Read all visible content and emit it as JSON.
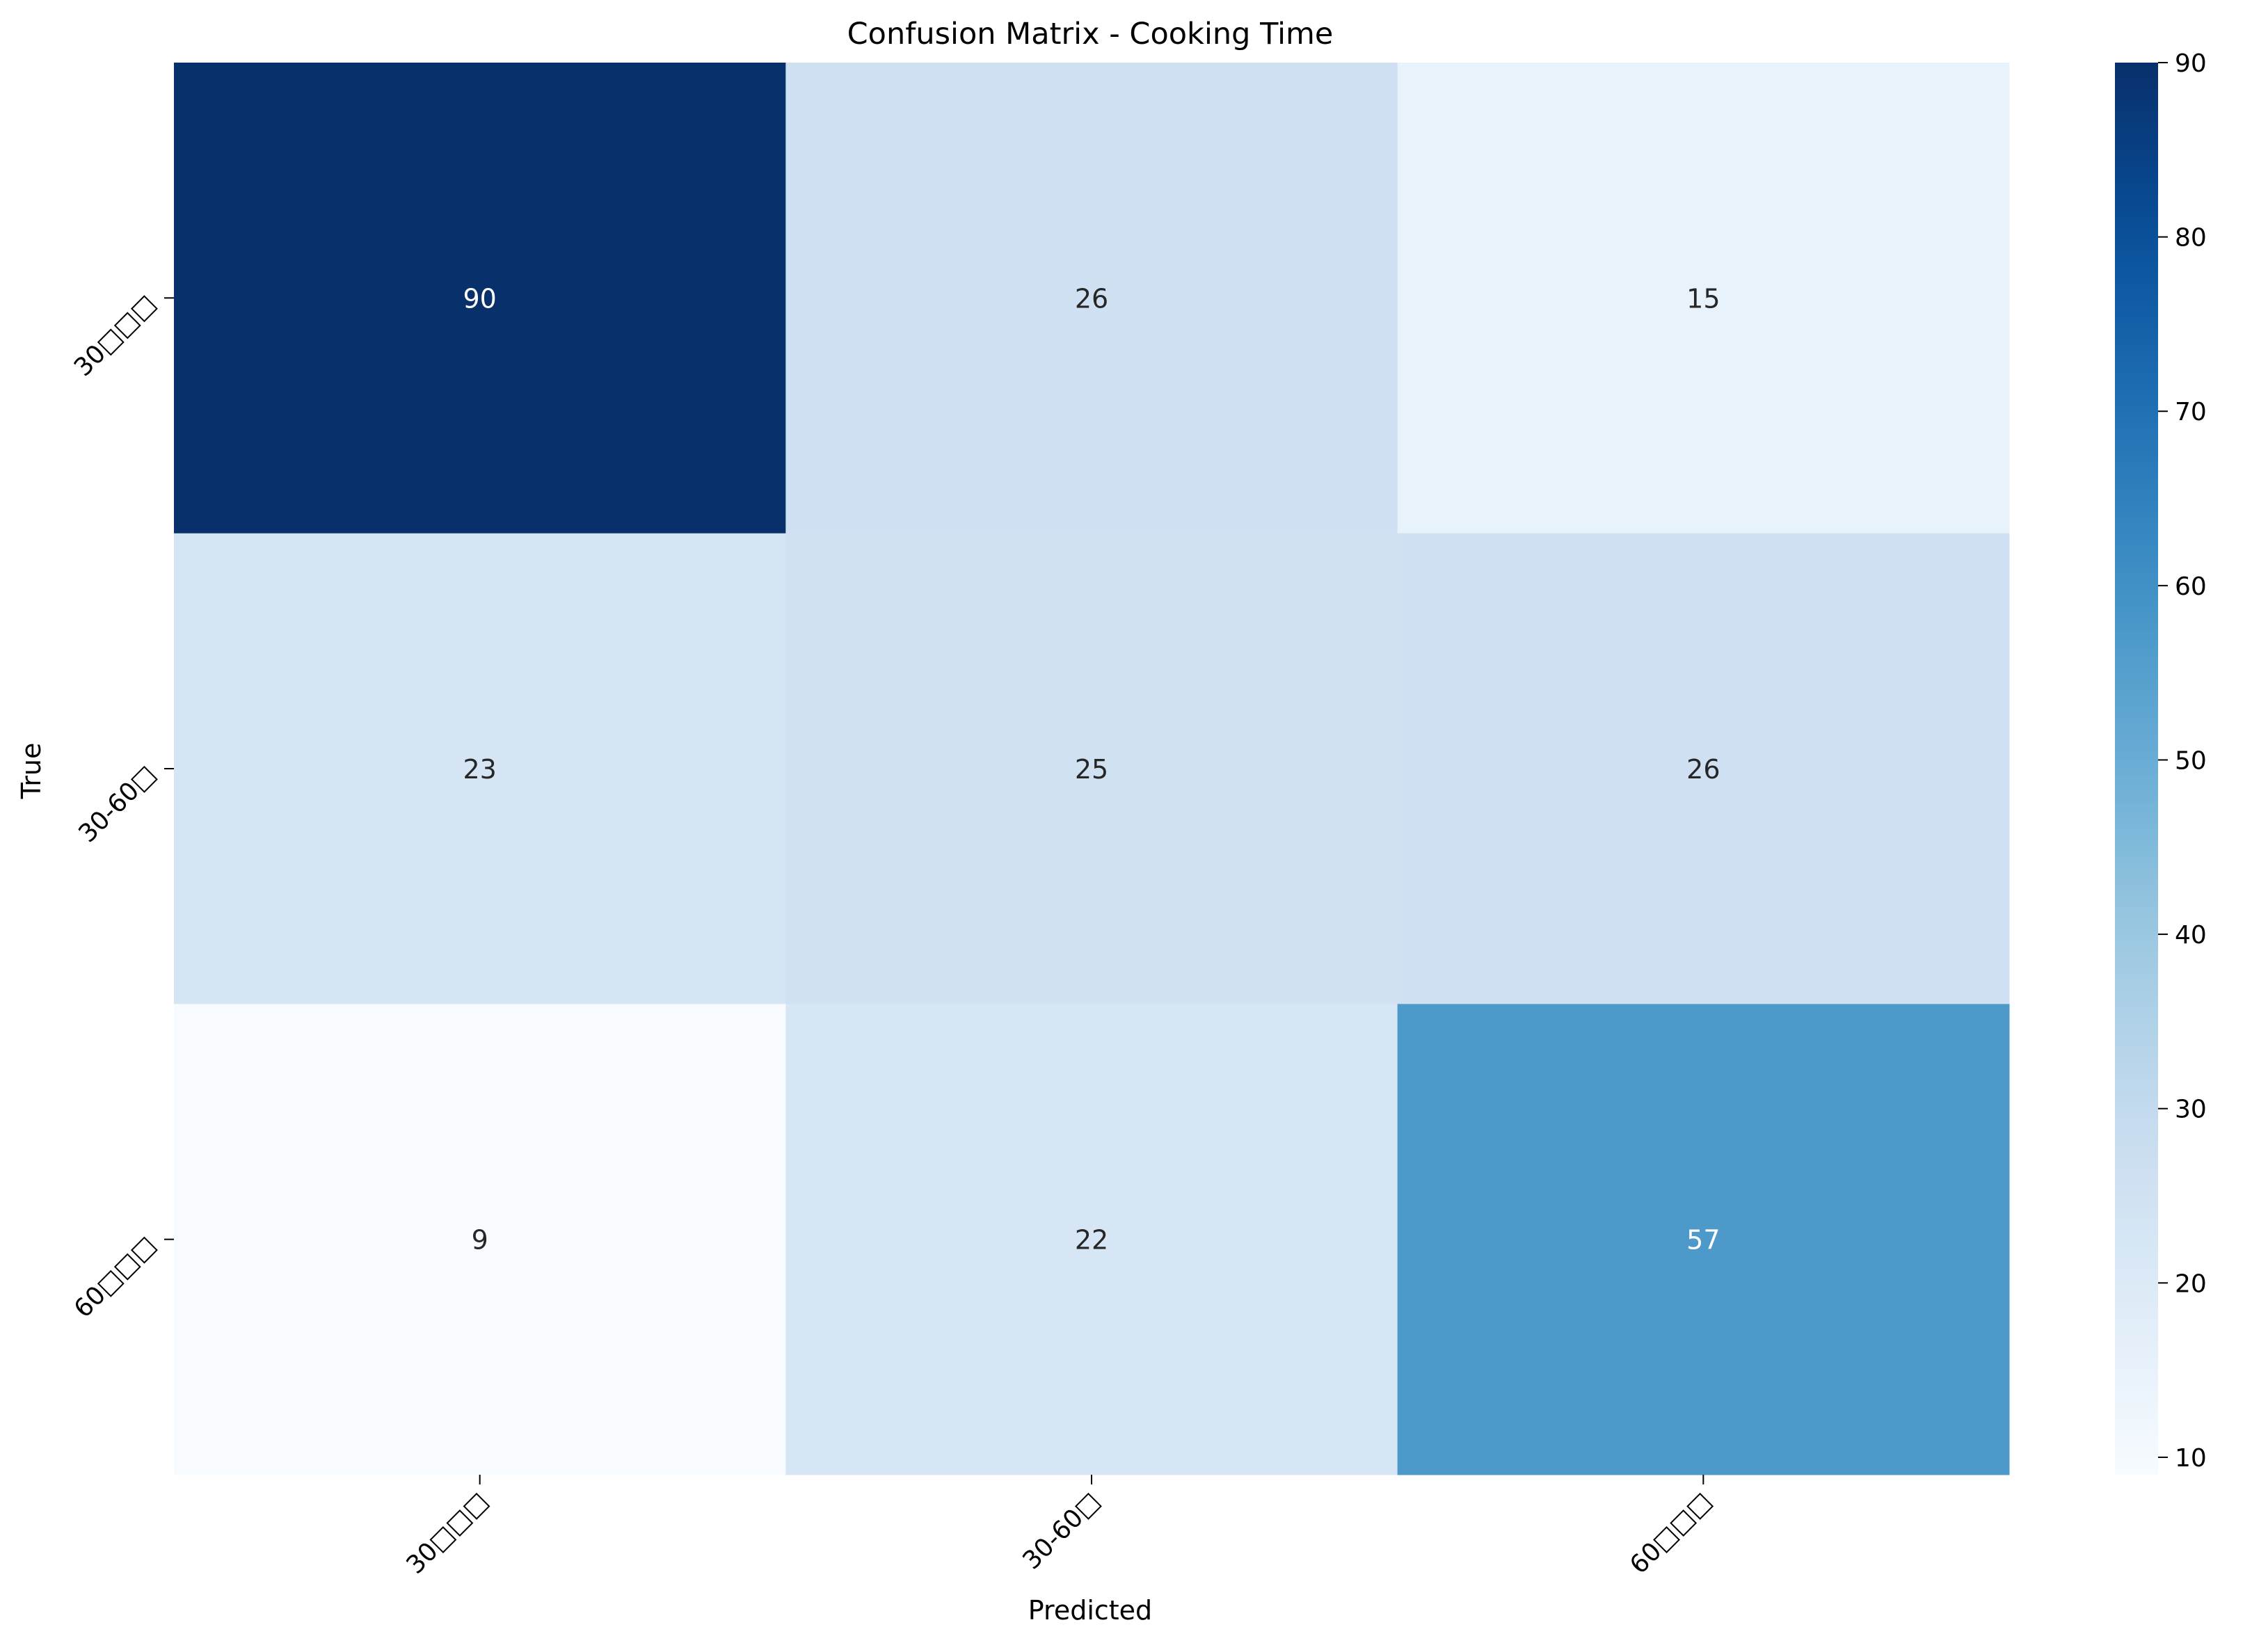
{
  "chart_data": {
    "type": "heatmap",
    "title": "Confusion Matrix - Cooking Time",
    "xlabel": "Predicted",
    "ylabel": "True",
    "x_tick_labels": [
      "30分以内",
      "30-60分",
      "60分以上"
    ],
    "y_tick_labels": [
      "30分以内",
      "30-60分",
      "60分以上"
    ],
    "x_tick_labels_rendered": [
      "30□□□",
      "30-60□",
      "60□□□"
    ],
    "y_tick_labels_rendered": [
      "30□□□",
      "30-60□",
      "60□□□"
    ],
    "matrix": [
      [
        90,
        26,
        15
      ],
      [
        23,
        25,
        26
      ],
      [
        9,
        22,
        57
      ]
    ],
    "colormap": "Blues",
    "colorbar": {
      "min": 9,
      "max": 90,
      "ticks": [
        10,
        20,
        30,
        40,
        50,
        60,
        70,
        80,
        90
      ]
    },
    "annotations": true,
    "annotation_colors": {
      "light": "#ffffff",
      "dark": "#262626"
    }
  }
}
